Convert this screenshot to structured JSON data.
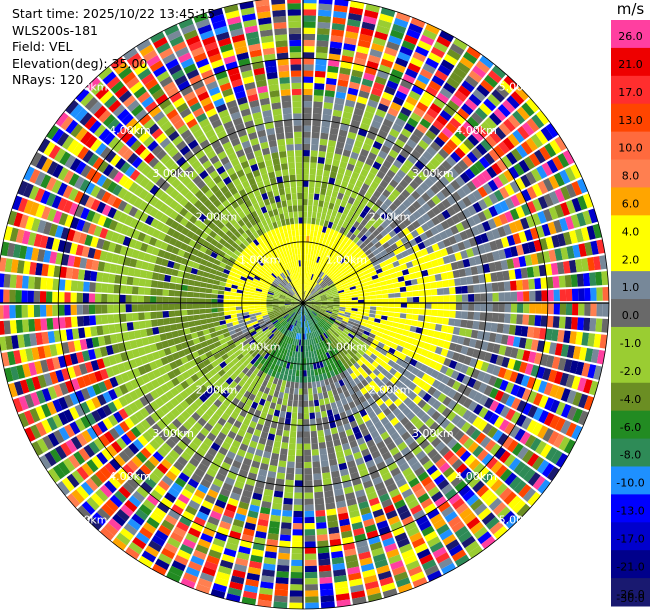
{
  "header": {
    "start_time": "Start time: 2025/10/22 13:45:15",
    "site": "WLS200s-181",
    "field": "Field: VEL",
    "elevation": "Elevation(deg): 35.00",
    "nrays": "NRays: 120"
  },
  "colorbar": {
    "unit": "m/s",
    "levels": [
      {
        "value": "26.0",
        "color": "#ff3fa0"
      },
      {
        "value": "21.0",
        "color": "#ee0000"
      },
      {
        "value": "17.0",
        "color": "#ff2e2e"
      },
      {
        "value": "13.0",
        "color": "#ff4500"
      },
      {
        "value": "10.0",
        "color": "#ff6a3d"
      },
      {
        "value": "8.0",
        "color": "#ff7f50"
      },
      {
        "value": "6.0",
        "color": "#ffa500"
      },
      {
        "value": "4.0",
        "color": "#ffff00"
      },
      {
        "value": "2.0",
        "color": "#ffff00"
      },
      {
        "value": "1.0",
        "color": "#778899"
      },
      {
        "value": "0.0",
        "color": "#696969"
      },
      {
        "value": "-1.0",
        "color": "#9acd32"
      },
      {
        "value": "-2.0",
        "color": "#9acd32"
      },
      {
        "value": "-4.0",
        "color": "#6b8e23"
      },
      {
        "value": "-6.0",
        "color": "#228b22"
      },
      {
        "value": "-8.0",
        "color": "#2e8b57"
      },
      {
        "value": "-10.0",
        "color": "#1e90ff"
      },
      {
        "value": "-13.0",
        "color": "#0000ff"
      },
      {
        "value": "-17.0",
        "color": "#0000cd"
      },
      {
        "value": "-21.0",
        "color": "#00008b"
      },
      {
        "value": "-26.0",
        "color": "#191970"
      },
      {
        "value": "-30.0",
        "color": "#191970"
      }
    ]
  },
  "chart_data": {
    "type": "heatmap",
    "projection": "polar-ppi",
    "field": "VEL",
    "unit": "m/s",
    "n_rays": 120,
    "max_range_km": 5.0,
    "range_rings_km": [
      1.0,
      2.0,
      3.0,
      4.0,
      5.0
    ],
    "ring_labels": [
      "1.00km",
      "2.00km",
      "3.00km",
      "4.00km",
      "5.00km"
    ],
    "azimuth_spokes_deg": [
      0,
      30,
      60,
      90,
      120,
      150,
      180,
      210,
      240,
      270,
      300,
      330
    ],
    "value_range": [
      -30.0,
      26.0
    ],
    "zones": [
      {
        "range_km": [
          0.0,
          0.6
        ],
        "description": "mixed gray near origin",
        "north_value": 4.0,
        "south_value": -8.0
      },
      {
        "range_km": [
          0.6,
          1.3
        ],
        "north_value": 5.0,
        "south_value": -7.0,
        "east_value": 3.0,
        "west_value": 3.0
      },
      {
        "range_km": [
          1.3,
          2.5
        ],
        "north_value": -1.5,
        "south_value": 0.5,
        "east_value": 3.0,
        "west_value": -3.0
      },
      {
        "range_km": [
          2.5,
          3.4
        ],
        "north_value": 0.5,
        "south_value": 0.5,
        "east_value": 1.0,
        "west_value": -1.5
      },
      {
        "range_km": [
          3.4,
          5.0
        ],
        "description": "noise (random colors)"
      }
    ]
  }
}
